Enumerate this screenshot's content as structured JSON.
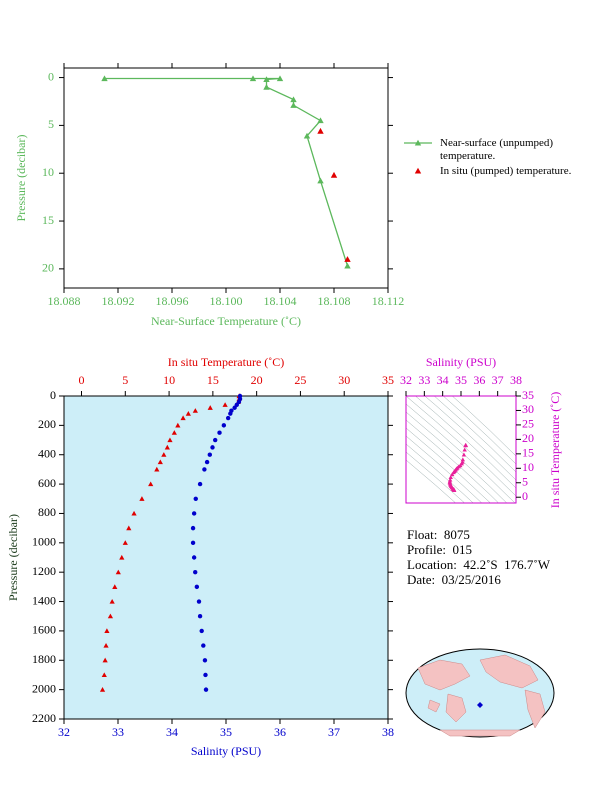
{
  "chart_data": [
    {
      "type": "line",
      "xlabel": "Near-Surface Temperature (˚C)",
      "ylabel": "Pressure (decibar)",
      "xlim": [
        18.088,
        18.112
      ],
      "xticks": [
        18.088,
        18.092,
        18.096,
        {
          "value": 18.1,
          "label": "18.100"
        },
        18.104,
        18.108,
        18.112
      ],
      "ylim": [
        -1,
        22
      ],
      "yticks": [
        0,
        5,
        10,
        15,
        20
      ],
      "y_inverted": true,
      "series": [
        {
          "name": "Near-surface (unpumped) temperature.",
          "color": "#5cb85c",
          "marker": "triangle",
          "line": true,
          "x": [
            18.091,
            18.102,
            18.104,
            18.103,
            18.103,
            18.105,
            18.105,
            18.107,
            18.106,
            18.107,
            18.109
          ],
          "y": [
            0.1,
            0.1,
            0.1,
            0.2,
            1.0,
            2.3,
            2.9,
            4.5,
            6.1,
            10.8,
            19.7
          ]
        },
        {
          "name": "In situ (pumped) temperature.",
          "color": "#e00000",
          "marker": "triangle",
          "line": false,
          "x": [
            18.107,
            18.108,
            18.109
          ],
          "y": [
            5.6,
            10.2,
            19.0
          ]
        }
      ]
    },
    {
      "type": "profile",
      "ylabel": "Pressure (decibar)",
      "ylim": [
        0,
        2200
      ],
      "y_inverted": true,
      "yticks": [
        0,
        200,
        400,
        600,
        800,
        1000,
        1200,
        1400,
        1600,
        1800,
        2000,
        2200
      ],
      "xlabel": "Salinity (PSU)",
      "xlim": [
        32,
        38
      ],
      "xticks": [
        32,
        33,
        34,
        35,
        36,
        37,
        38
      ],
      "x2label": "In situ Temperature (˚C)",
      "x2lim": [
        -2,
        35
      ],
      "x2ticks": [
        0,
        5,
        10,
        15,
        20,
        25,
        30,
        35
      ],
      "background": "#cdeef8",
      "pressure": [
        0,
        20,
        40,
        60,
        80,
        100,
        120,
        150,
        200,
        250,
        300,
        350,
        400,
        450,
        500,
        600,
        700,
        800,
        900,
        1000,
        1100,
        1200,
        1300,
        1400,
        1500,
        1600,
        1700,
        1800,
        1900,
        2000
      ],
      "series": [
        {
          "axis": "x2",
          "color": "#e00000",
          "marker": "triangle",
          "values": [
            18.0,
            18.0,
            17.9,
            16.4,
            14.7,
            13.0,
            12.2,
            11.6,
            11.0,
            10.6,
            10.1,
            9.8,
            9.4,
            9.0,
            8.6,
            7.9,
            6.9,
            6.0,
            5.4,
            5.0,
            4.6,
            4.2,
            3.8,
            3.5,
            3.3,
            2.9,
            2.8,
            2.7,
            2.6,
            2.4
          ]
        },
        {
          "axis": "x",
          "color": "#0000cc",
          "marker": "circle",
          "values": [
            35.26,
            35.26,
            35.24,
            35.2,
            35.16,
            35.1,
            35.08,
            35.04,
            34.96,
            34.88,
            34.8,
            34.75,
            34.7,
            34.65,
            34.6,
            34.52,
            34.44,
            34.41,
            34.39,
            34.39,
            34.41,
            34.43,
            34.46,
            34.5,
            34.52,
            34.55,
            34.58,
            34.61,
            34.62,
            34.63
          ]
        }
      ]
    },
    {
      "type": "ts",
      "xlabel": "Salinity (PSU)",
      "xlim": [
        32,
        38
      ],
      "xticks": [
        32,
        33,
        34,
        35,
        36,
        37,
        38
      ],
      "ylabel": "In situ Temperature (˚C)",
      "ylim": [
        -2,
        35
      ],
      "yticks": [
        0,
        5,
        10,
        15,
        20,
        25,
        30,
        35
      ],
      "color": "#e8209a",
      "axis_color": "#cc00cc"
    }
  ],
  "info": [
    "Float:  8075",
    "Profile:  015",
    "Location:  42.2˚S  176.7˚W",
    "Date:  03/25/2016"
  ]
}
